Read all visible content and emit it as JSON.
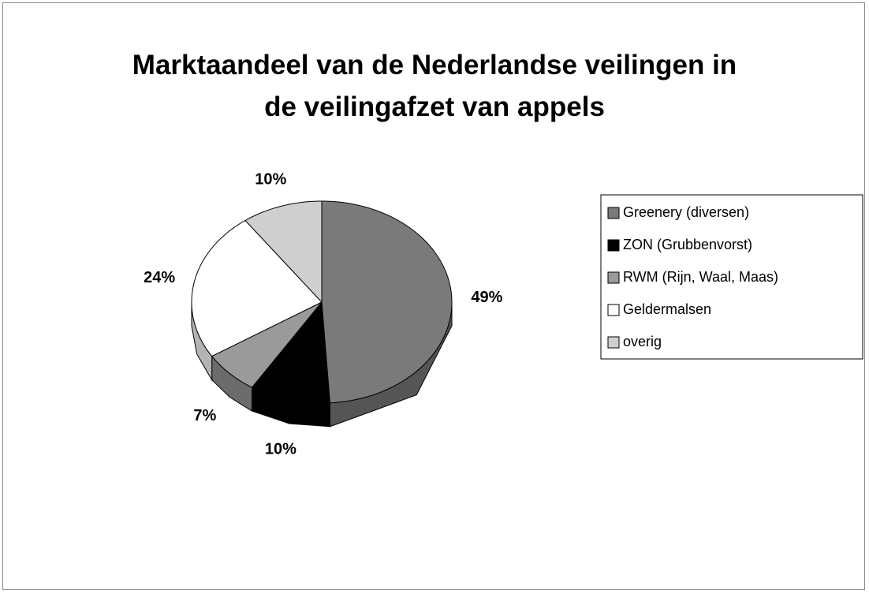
{
  "chart_data": {
    "type": "pie",
    "title": "Marktaandeel van de Nederlandse veilingen in de veilingafzet van appels",
    "categories": [
      "Greenery (diversen)",
      "ZON (Grubbenvorst)",
      "RWM (Rijn, Waal, Maas)",
      "Geldermalsen",
      "overig"
    ],
    "values": [
      49,
      10,
      7,
      24,
      10
    ],
    "value_labels": [
      "49%",
      "10%",
      "7%",
      "24%",
      "10%"
    ],
    "colors": [
      "#7a7a7a",
      "#000000",
      "#9a9a9a",
      "#ffffff",
      "#cfcfcf"
    ],
    "legend": "right"
  }
}
